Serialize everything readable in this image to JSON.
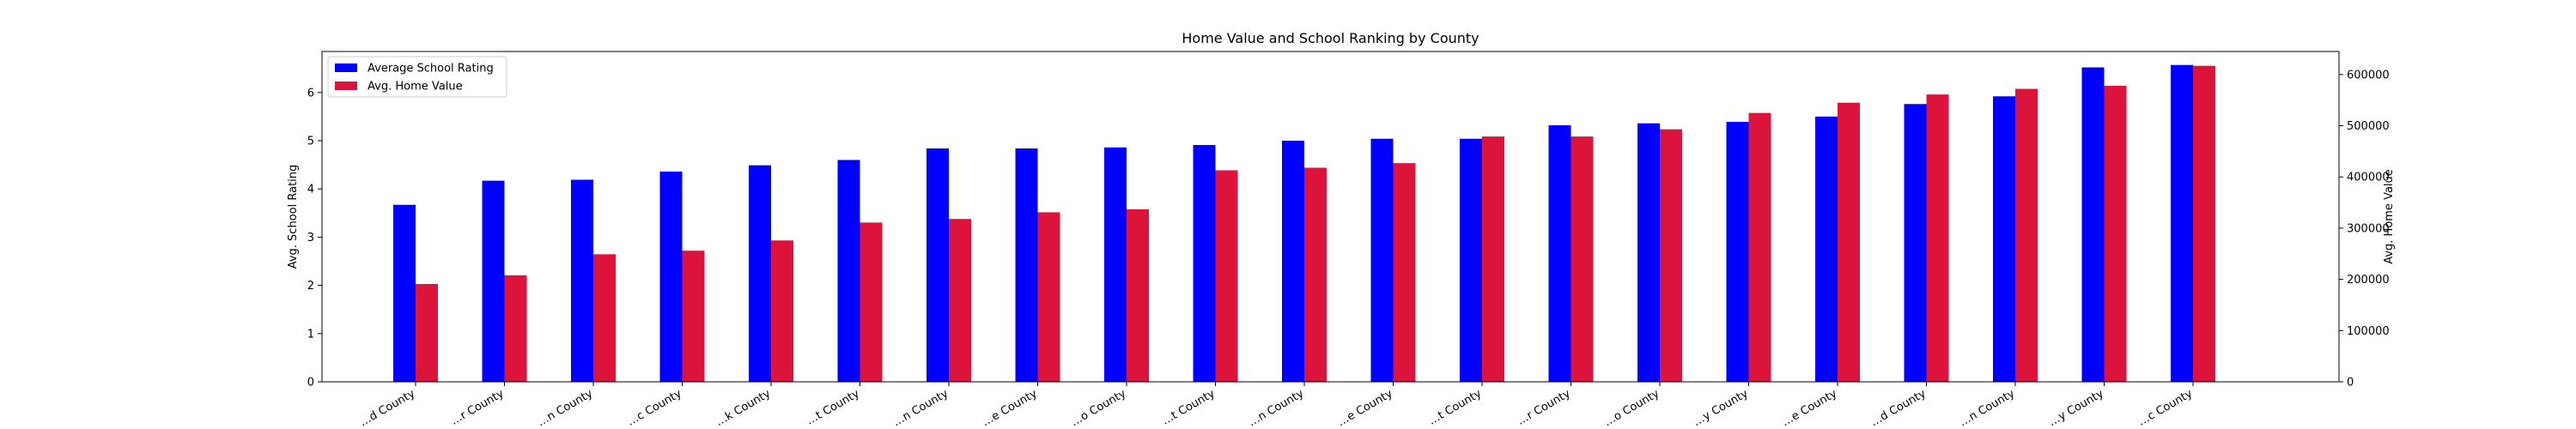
{
  "chart_data": {
    "type": "bar",
    "title": "Home Value and School Ranking by County",
    "xlabel": "",
    "ylabel_left": "Avg. School Rating",
    "ylabel_right": "Avg. Home Value",
    "ylim_left": [
      0,
      6.85
    ],
    "ylim_right": [
      0,
      645000
    ],
    "yticks_left": [
      0,
      1,
      2,
      3,
      4,
      5,
      6
    ],
    "yticks_right": [
      0,
      100000,
      200000,
      300000,
      400000,
      500000,
      600000
    ],
    "categories": [
      "…d County",
      "…r County",
      "…n County",
      "…c County",
      "…k County",
      "…t County",
      "…n County",
      "…e County",
      "…o County",
      "…t County",
      "…n County",
      "…e County",
      "…t County",
      "…r County",
      "…o County",
      "…y County",
      "…e County",
      "…d County",
      "…n County",
      "…y County",
      "…c County"
    ],
    "legend_position": "top-left",
    "grid": false,
    "series": [
      {
        "name": "Average School Rating",
        "axis": "left",
        "color": "#0000ff",
        "values": [
          3.67,
          4.17,
          4.19,
          4.36,
          4.49,
          4.6,
          4.84,
          4.84,
          4.86,
          4.91,
          5.0,
          5.04,
          5.04,
          5.32,
          5.36,
          5.39,
          5.5,
          5.76,
          5.92,
          6.52,
          6.57
        ]
      },
      {
        "name": "Avg. Home Value",
        "axis": "right",
        "color": "#dc143c",
        "values": [
          191000,
          208000,
          249000,
          256000,
          276000,
          311000,
          318000,
          331000,
          337000,
          413000,
          418000,
          427000,
          479000,
          479000,
          493000,
          525000,
          545000,
          561000,
          572000,
          578000,
          617000
        ]
      }
    ]
  }
}
